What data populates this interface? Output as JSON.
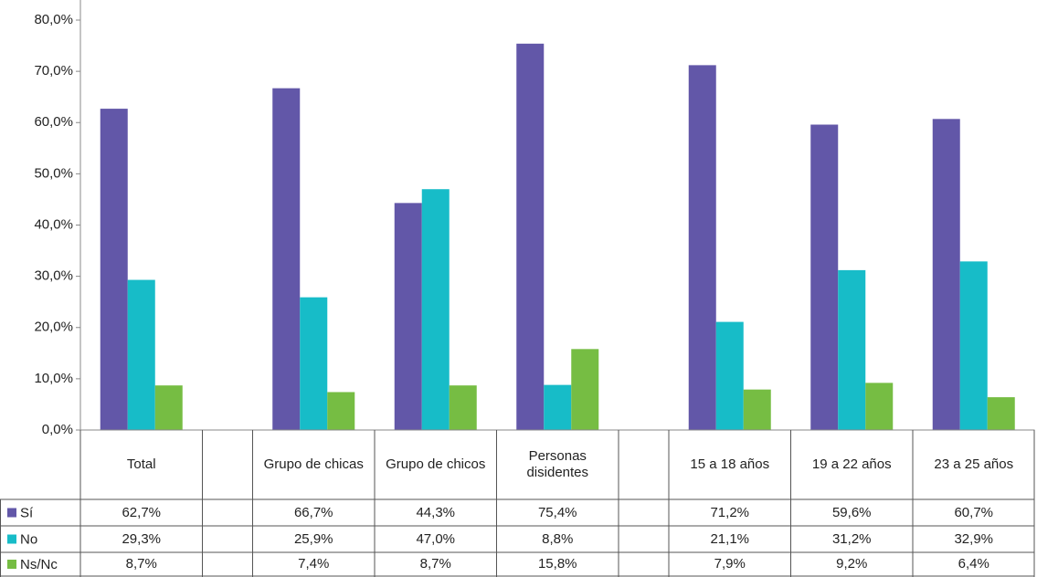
{
  "chart_data": {
    "type": "bar",
    "categories": [
      "Total",
      null,
      "Grupo de chicas",
      "Grupo de chicos",
      "Personas disidentes",
      null,
      "15 a 18 años",
      "19 a 22 años",
      "23 a 25 años"
    ],
    "series": [
      {
        "name": "Sí",
        "color": "#6257a8",
        "values": [
          62.7,
          null,
          66.7,
          44.3,
          75.4,
          null,
          71.2,
          59.6,
          60.7
        ],
        "value_labels": [
          "62,7%",
          null,
          "66,7%",
          "44,3%",
          "75,4%",
          null,
          "71,2%",
          "59,6%",
          "60,7%"
        ]
      },
      {
        "name": "No",
        "color": "#17bcc8",
        "values": [
          29.3,
          null,
          25.9,
          47.0,
          8.8,
          null,
          21.1,
          31.2,
          32.9
        ],
        "value_labels": [
          "29,3%",
          null,
          "25,9%",
          "47,0%",
          "8,8%",
          null,
          "21,1%",
          "31,2%",
          "32,9%"
        ]
      },
      {
        "name": "Ns/Nc",
        "color": "#76bd43",
        "values": [
          8.7,
          null,
          7.4,
          8.7,
          15.8,
          null,
          7.9,
          9.2,
          6.4
        ],
        "value_labels": [
          "8,7%",
          null,
          "7,4%",
          "8,7%",
          "15,8%",
          null,
          "7,9%",
          "9,2%",
          "6,4%"
        ]
      }
    ],
    "ylim": [
      0,
      80
    ],
    "yticks": [
      {
        "value": 0,
        "label": "0,0%"
      },
      {
        "value": 10,
        "label": "10,0%"
      },
      {
        "value": 20,
        "label": "20,0%"
      },
      {
        "value": 30,
        "label": "30,0%"
      },
      {
        "value": 40,
        "label": "40,0%"
      },
      {
        "value": 50,
        "label": "50,0%"
      },
      {
        "value": 60,
        "label": "60,0%"
      },
      {
        "value": 70,
        "label": "70,0%"
      },
      {
        "value": 80,
        "label": "80,0%"
      }
    ],
    "grid": false
  }
}
